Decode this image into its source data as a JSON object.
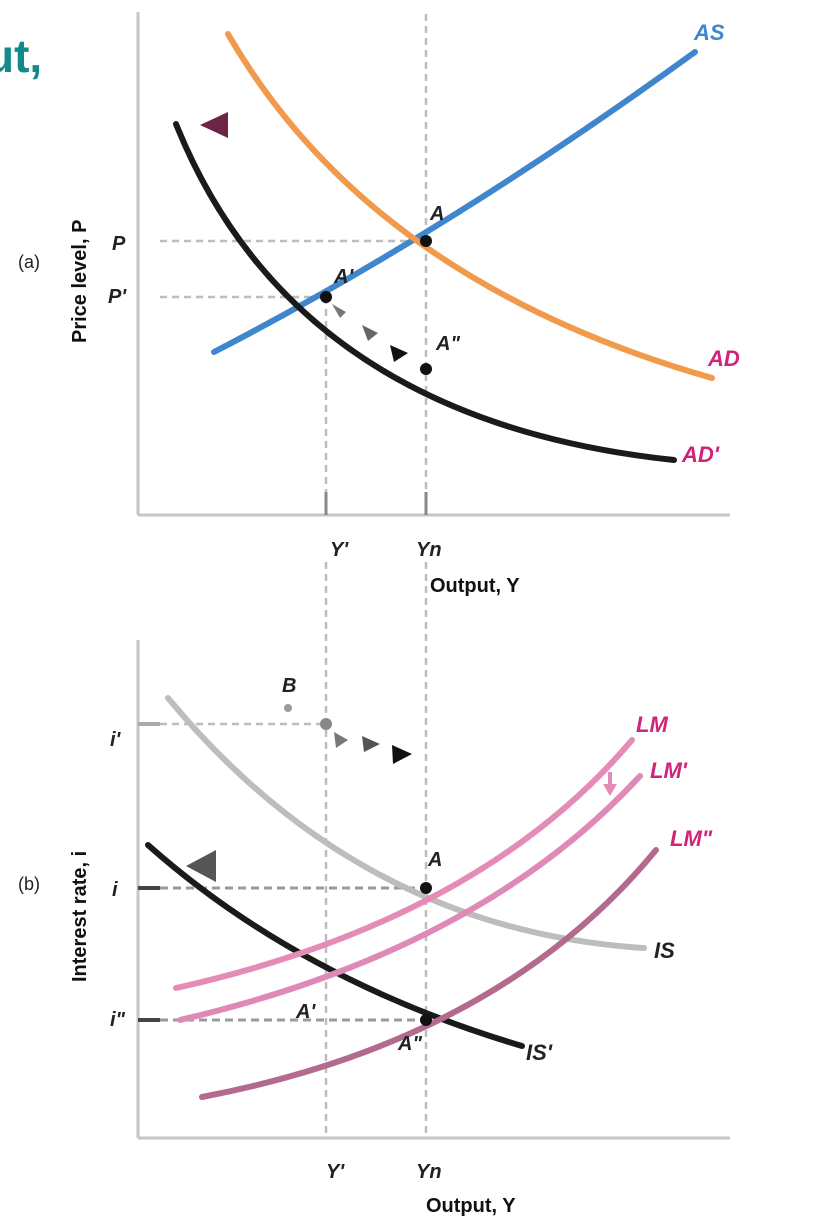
{
  "heading_fragment": "ut,",
  "panel_a": {
    "panel_label": "(a)",
    "y_axis_title": "Price level, P",
    "x_axis_title": "Output, Y",
    "y_ticks": [
      "P",
      "P'"
    ],
    "x_ticks": [
      "Y'",
      "Yn"
    ],
    "curves": {
      "as": "AS",
      "ad": "AD",
      "ad_shifted": "AD'"
    },
    "points": {
      "a": "A",
      "a1": "A'",
      "a2": "A\""
    }
  },
  "panel_b": {
    "panel_label": "(b)",
    "y_axis_title": "Interest rate, i",
    "x_axis_title": "Output, Y",
    "y_ticks": [
      "i",
      "i'",
      "i\""
    ],
    "x_ticks": [
      "Y'",
      "Yn"
    ],
    "curves": {
      "lm": "LM",
      "lm1": "LM'",
      "lm2": "LM\"",
      "is": "IS",
      "is_shifted": "IS'"
    },
    "points": {
      "a": "A",
      "b": "B",
      "a1": "A'",
      "a2": "A\""
    }
  },
  "colors": {
    "as": "#3f86cc",
    "ad": "#f29a4c",
    "ad_shifted": "#1a1a1a",
    "lm": "#e58bb8",
    "lm1": "#df8ab6",
    "lm2": "#b36a8e",
    "is": "#bdbdbd",
    "is_shifted": "#1a1a1a",
    "curve_label": "#d0247a",
    "shift_arrow_a": "#7b2f4f",
    "heading": "#138a8a"
  }
}
